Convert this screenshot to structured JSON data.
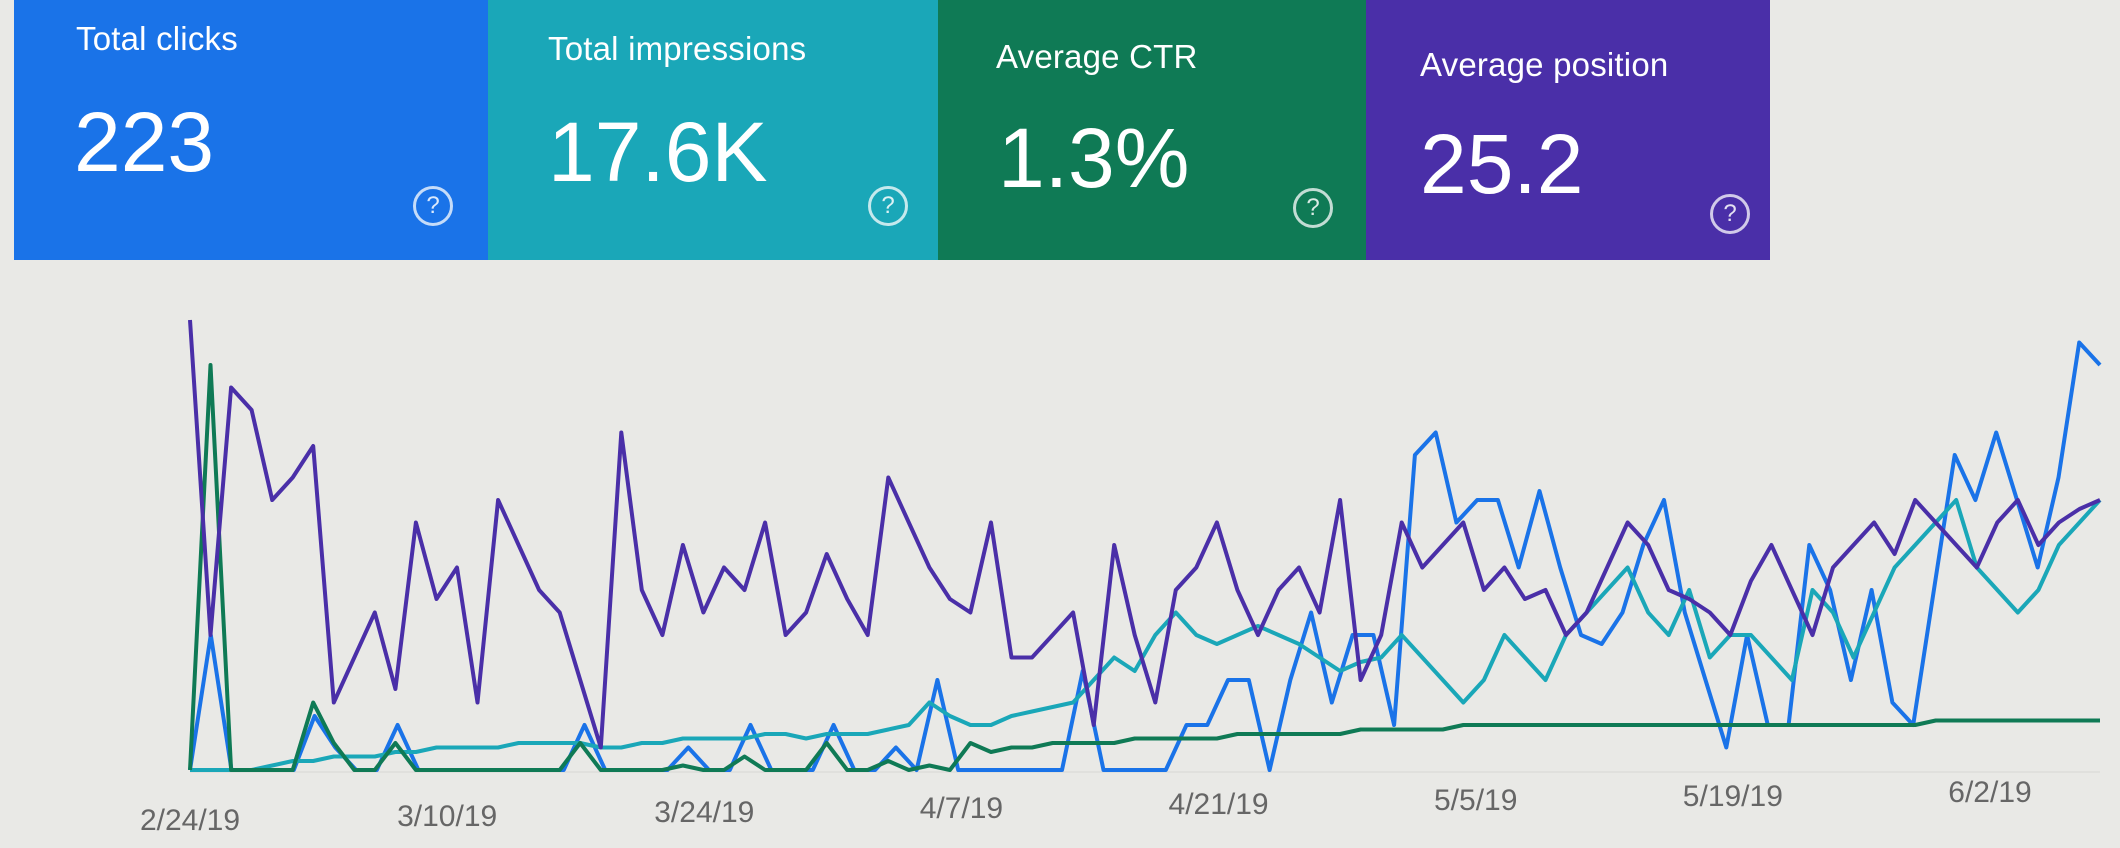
{
  "cards": [
    {
      "id": "clicks",
      "label": "Total clicks",
      "value": "223",
      "color": "#1a73e8"
    },
    {
      "id": "impr",
      "label": "Total impressions",
      "value": "17.6K",
      "color": "#1aa7b8"
    },
    {
      "id": "ctr",
      "label": "Average CTR",
      "value": "1.3%",
      "color": "#0f7a55"
    },
    {
      "id": "pos",
      "label": "Average position",
      "value": "25.2",
      "color": "#4a2fa8"
    }
  ],
  "help_glyph": "?",
  "chart_data": {
    "type": "line",
    "x_ticks": [
      "2/24/19",
      "3/10/19",
      "3/24/19",
      "4/7/19",
      "4/21/19",
      "5/5/19",
      "5/19/19",
      "6/2/19"
    ],
    "grid": false,
    "legend": "none",
    "series": [
      {
        "key": "clicks",
        "color": "#1a73e8",
        "values": [
          0,
          0.3,
          0,
          0,
          0,
          0,
          0.12,
          0.05,
          0,
          0,
          0.1,
          0,
          0,
          0,
          0,
          0,
          0,
          0,
          0,
          0.1,
          0,
          0,
          0,
          0,
          0.05,
          0,
          0,
          0.1,
          0,
          0,
          0,
          0.1,
          0,
          0,
          0.05,
          0,
          0.2,
          0,
          0,
          0,
          0,
          0,
          0,
          0.22,
          0,
          0,
          0,
          0,
          0.1,
          0.1,
          0.2,
          0.2,
          0,
          0.2,
          0.35,
          0.15,
          0.3,
          0.3,
          0.1,
          0.7,
          0.75,
          0.55,
          0.6,
          0.6,
          0.45,
          0.62,
          0.45,
          0.3,
          0.28,
          0.35,
          0.5,
          0.6,
          0.35,
          0.2,
          0.05,
          0.3,
          0.1,
          0.1,
          0.5,
          0.4,
          0.2,
          0.4,
          0.15,
          0.1,
          0.4,
          0.7,
          0.6,
          0.75,
          0.6,
          0.45,
          0.65,
          0.95,
          0.9
        ]
      },
      {
        "key": "impr",
        "color": "#1aa7b8",
        "values": [
          0,
          0,
          0,
          0,
          0.01,
          0.02,
          0.02,
          0.03,
          0.03,
          0.03,
          0.04,
          0.04,
          0.05,
          0.05,
          0.05,
          0.05,
          0.06,
          0.06,
          0.06,
          0.06,
          0.05,
          0.05,
          0.06,
          0.06,
          0.07,
          0.07,
          0.07,
          0.07,
          0.08,
          0.08,
          0.07,
          0.08,
          0.08,
          0.08,
          0.09,
          0.1,
          0.15,
          0.12,
          0.1,
          0.1,
          0.12,
          0.13,
          0.14,
          0.15,
          0.2,
          0.25,
          0.22,
          0.3,
          0.35,
          0.3,
          0.28,
          0.3,
          0.32,
          0.3,
          0.28,
          0.25,
          0.22,
          0.24,
          0.25,
          0.3,
          0.25,
          0.2,
          0.15,
          0.2,
          0.3,
          0.25,
          0.2,
          0.3,
          0.35,
          0.4,
          0.45,
          0.35,
          0.3,
          0.4,
          0.25,
          0.3,
          0.3,
          0.25,
          0.2,
          0.4,
          0.35,
          0.25,
          0.35,
          0.45,
          0.5,
          0.55,
          0.6,
          0.45,
          0.4,
          0.35,
          0.4,
          0.5,
          0.55,
          0.6
        ]
      },
      {
        "key": "ctr",
        "color": "#0f7a55",
        "values": [
          0,
          0.9,
          0,
          0,
          0,
          0,
          0.15,
          0.06,
          0,
          0,
          0.06,
          0,
          0,
          0,
          0,
          0,
          0,
          0,
          0,
          0.06,
          0,
          0,
          0,
          0,
          0.01,
          0,
          0,
          0.03,
          0,
          0,
          0,
          0.06,
          0,
          0,
          0.02,
          0,
          0.01,
          0,
          0.06,
          0.04,
          0.05,
          0.05,
          0.06,
          0.06,
          0.06,
          0.06,
          0.07,
          0.07,
          0.07,
          0.07,
          0.07,
          0.08,
          0.08,
          0.08,
          0.08,
          0.08,
          0.08,
          0.09,
          0.09,
          0.09,
          0.09,
          0.09,
          0.1,
          0.1,
          0.1,
          0.1,
          0.1,
          0.1,
          0.1,
          0.1,
          0.1,
          0.1,
          0.1,
          0.1,
          0.1,
          0.1,
          0.1,
          0.1,
          0.1,
          0.1,
          0.1,
          0.1,
          0.1,
          0.1,
          0.1,
          0.11,
          0.11,
          0.11,
          0.11,
          0.11,
          0.11,
          0.11,
          0.11,
          0.11
        ]
      },
      {
        "key": "pos",
        "color": "#4a2fa8",
        "values": [
          1.0,
          0.3,
          0.85,
          0.8,
          0.6,
          0.65,
          0.72,
          0.15,
          0.25,
          0.35,
          0.18,
          0.55,
          0.38,
          0.45,
          0.15,
          0.6,
          0.5,
          0.4,
          0.35,
          0.2,
          0.05,
          0.75,
          0.4,
          0.3,
          0.5,
          0.35,
          0.45,
          0.4,
          0.55,
          0.3,
          0.35,
          0.48,
          0.38,
          0.3,
          0.65,
          0.55,
          0.45,
          0.38,
          0.35,
          0.55,
          0.25,
          0.25,
          0.3,
          0.35,
          0.1,
          0.5,
          0.3,
          0.15,
          0.4,
          0.45,
          0.55,
          0.4,
          0.3,
          0.4,
          0.45,
          0.35,
          0.6,
          0.2,
          0.3,
          0.55,
          0.45,
          0.5,
          0.55,
          0.4,
          0.45,
          0.38,
          0.4,
          0.3,
          0.35,
          0.45,
          0.55,
          0.5,
          0.4,
          0.38,
          0.35,
          0.3,
          0.42,
          0.5,
          0.4,
          0.3,
          0.45,
          0.5,
          0.55,
          0.48,
          0.6,
          0.55,
          0.5,
          0.45,
          0.55,
          0.6,
          0.5,
          0.55,
          0.58,
          0.6
        ]
      }
    ]
  }
}
